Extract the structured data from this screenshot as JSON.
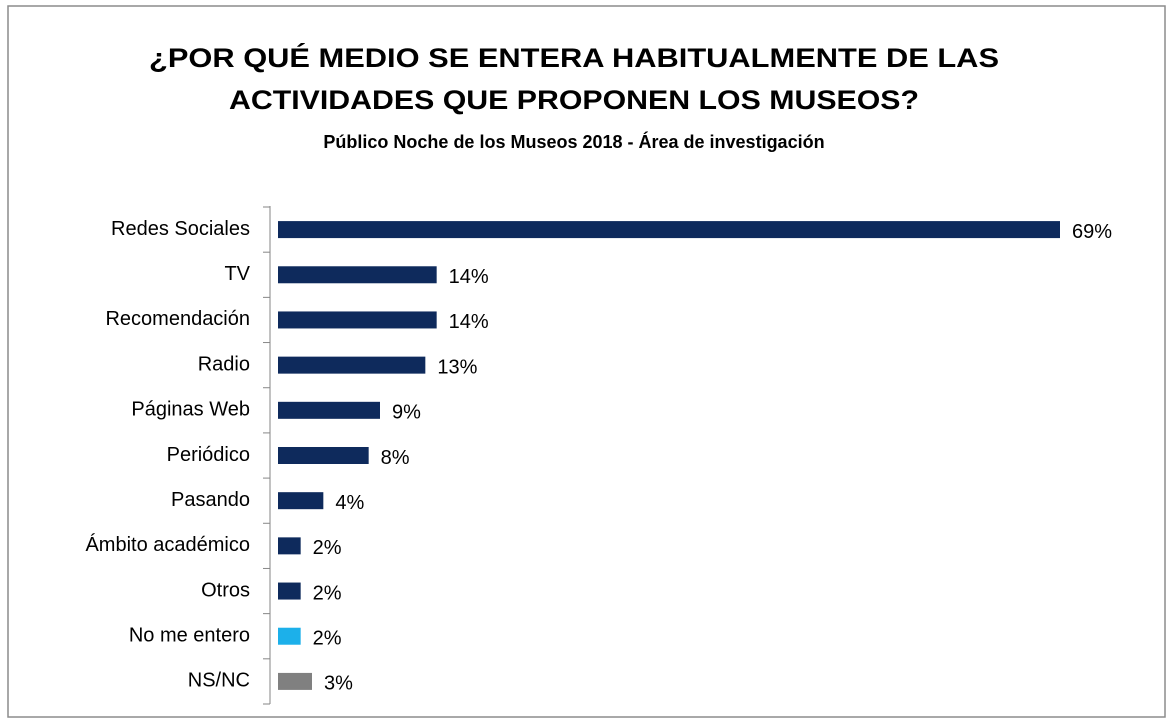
{
  "chart_data": {
    "type": "bar",
    "orientation": "horizontal",
    "title": [
      "¿POR QUÉ MEDIO SE ENTERA HABITUALMENTE DE LAS",
      "ACTIVIDADES QUE PROPONEN LOS MUSEOS?"
    ],
    "subtitle": "Público Noche de los Museos 2018 - Área de investigación",
    "categories": [
      "Redes Sociales",
      "TV",
      "Recomendación",
      "Radio",
      "Páginas Web",
      "Periódico",
      "Pasando",
      "Ámbito académico",
      "Otros",
      "No me entero",
      "NS/NC"
    ],
    "values": [
      69,
      14,
      14,
      13,
      9,
      8,
      4,
      2,
      2,
      2,
      3
    ],
    "value_labels": [
      "69%",
      "14%",
      "14%",
      "13%",
      "9%",
      "8%",
      "4%",
      "2%",
      "2%",
      "2%",
      "3%"
    ],
    "colors": [
      "#0e2a5c",
      "#0e2a5c",
      "#0e2a5c",
      "#0e2a5c",
      "#0e2a5c",
      "#0e2a5c",
      "#0e2a5c",
      "#0e2a5c",
      "#0e2a5c",
      "#1cb0ea",
      "#808080"
    ]
  }
}
